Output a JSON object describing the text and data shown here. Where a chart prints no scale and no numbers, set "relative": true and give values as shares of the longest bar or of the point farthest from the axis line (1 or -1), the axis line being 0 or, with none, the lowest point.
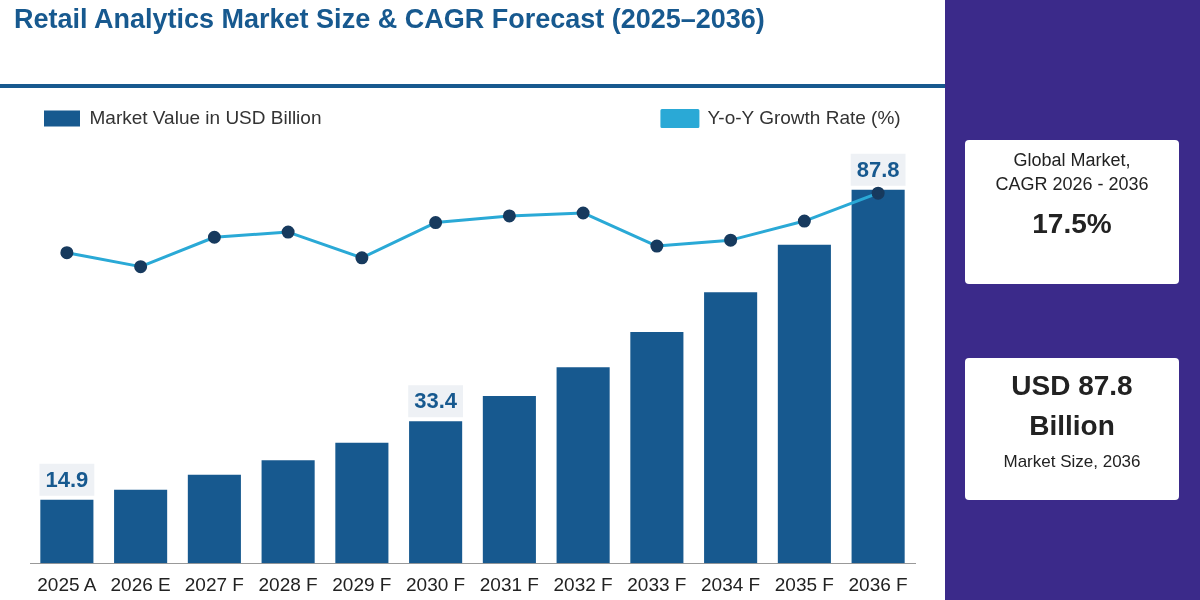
{
  "chart_data": [
    {
      "type": "bar",
      "title": "Retail Analytics Market Size & CAGR Forecast (2025–2036)",
      "categories": [
        "2025 A",
        "2026 E",
        "2027 F",
        "2028 F",
        "2029 F",
        "2030 F",
        "2031 F",
        "2032 F",
        "2033 F",
        "2034 F",
        "2035 F",
        "2036 F"
      ],
      "series": [
        {
          "name": "Market Value in USD Billion",
          "color": "#17598f",
          "values": [
            14.9,
            17.3,
            20.8,
            24.2,
            28.3,
            33.4,
            39.3,
            46.1,
            54.4,
            63.7,
            74.9,
            87.8
          ],
          "value_labels": [
            "14.9",
            null,
            null,
            null,
            null,
            "33.4",
            null,
            null,
            null,
            null,
            null,
            "87.8"
          ]
        }
      ],
      "legend": "top left",
      "grid": false,
      "annotations": [
        "Global Market, CAGR 2026 - 2036",
        "17.5%",
        "USD 87.8 Billion",
        "Market Size, 2036"
      ]
    },
    {
      "type": "line",
      "relative": true,
      "marker": "circle",
      "categories": [
        null,
        null,
        null,
        null,
        null,
        null,
        null,
        null,
        null,
        null,
        null,
        null
      ],
      "series": [
        {
          "name": "Y-o-Y Growth Rate (%)",
          "color": "#2aa9d6",
          "values": [
            0.19,
            0,
            0.4,
            0.47,
            0.12,
            0.6,
            0.69,
            0.73,
            0.28,
            0.36,
            0.62,
            1
          ]
        }
      ],
      "legend": "top right",
      "grid": false
    }
  ]
}
